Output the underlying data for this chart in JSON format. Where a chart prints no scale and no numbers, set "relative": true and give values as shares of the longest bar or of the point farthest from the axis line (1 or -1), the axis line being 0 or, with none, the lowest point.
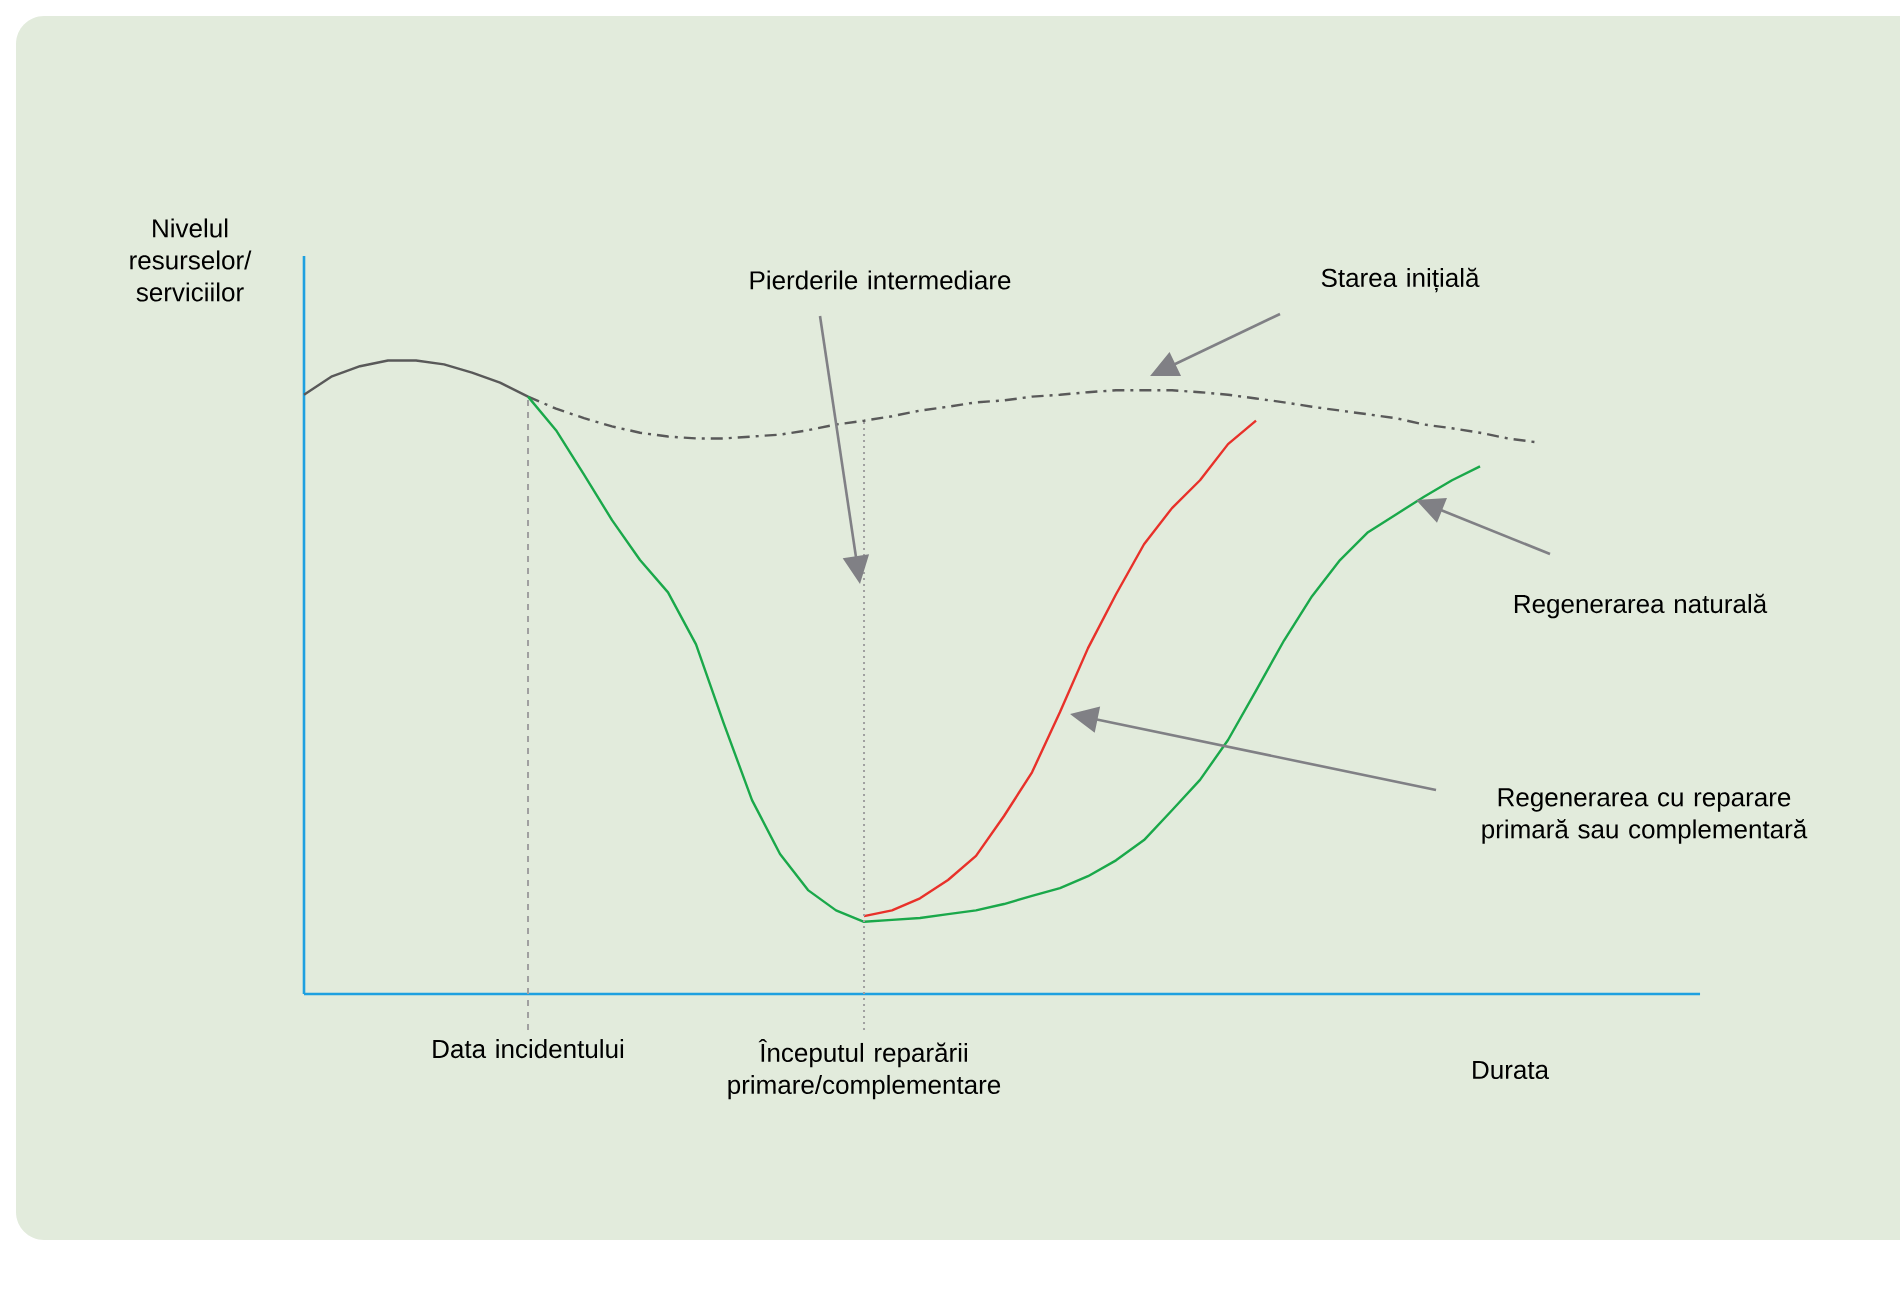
{
  "chart_data": {
    "type": "line",
    "relative": true,
    "ylabel": "Nivelul resurselor/ serviciilor",
    "xlabel": "Durata",
    "tick_labels": "x",
    "categories": [
      null,
      null,
      null,
      null,
      null,
      null,
      null,
      null,
      "Data incidentului",
      null,
      null,
      null,
      null,
      null,
      null,
      null,
      null,
      null,
      null,
      null,
      "Începutul reparării primare/complementare",
      null,
      null,
      null,
      null,
      null,
      null,
      null,
      null,
      null,
      null,
      null,
      null,
      null,
      null,
      null,
      null,
      null,
      null,
      null,
      null,
      null,
      null,
      null,
      null,
      null,
      null,
      null,
      null,
      null
    ],
    "series": [
      {
        "color": "#595959",
        "line_style": "solid",
        "values": [
          0.946,
          0.975,
          0.991,
          1.0,
          1.0,
          0.994,
          0.981,
          0.965,
          0.943,
          null,
          null,
          null,
          null,
          null,
          null,
          null,
          null,
          null,
          null,
          null,
          null,
          null,
          null,
          null,
          null,
          null,
          null,
          null,
          null,
          null,
          null,
          null,
          null,
          null,
          null,
          null,
          null,
          null,
          null,
          null,
          null,
          null,
          null,
          null,
          null,
          null,
          null,
          null,
          null,
          null
        ]
      },
      {
        "color": "#595959",
        "line_style": "dashed",
        "values": [
          null,
          null,
          null,
          null,
          null,
          null,
          null,
          null,
          0.943,
          0.924,
          0.909,
          0.896,
          0.886,
          0.88,
          0.877,
          0.877,
          0.88,
          0.883,
          0.89,
          0.899,
          0.905,
          0.912,
          0.921,
          0.927,
          0.934,
          0.937,
          0.943,
          0.946,
          0.95,
          0.953,
          0.953,
          0.953,
          0.95,
          0.946,
          0.94,
          0.934,
          0.927,
          0.921,
          0.915,
          0.909,
          0.899,
          0.893,
          0.886,
          0.877,
          0.871,
          null,
          null,
          null,
          null,
          null
        ]
      },
      {
        "color": "#1aa84a",
        "line_style": "solid",
        "values": [
          null,
          null,
          null,
          null,
          null,
          null,
          null,
          null,
          0.943,
          0.89,
          0.82,
          0.748,
          0.685,
          0.634,
          0.552,
          0.426,
          0.306,
          0.221,
          0.164,
          0.132,
          0.114,
          0.117,
          0.12,
          0.126,
          0.132,
          0.142,
          0.155,
          0.167,
          0.186,
          0.211,
          0.243,
          0.29,
          0.338,
          0.401,
          0.479,
          0.558,
          0.628,
          0.685,
          0.729,
          0.757,
          0.785,
          0.811,
          0.833,
          null,
          null,
          null,
          null,
          null,
          null,
          null
        ]
      },
      {
        "color": "#e8312a",
        "line_style": "solid",
        "values": [
          null,
          null,
          null,
          null,
          null,
          null,
          null,
          null,
          null,
          null,
          null,
          null,
          null,
          null,
          null,
          null,
          null,
          null,
          null,
          null,
          0.123,
          0.132,
          0.151,
          0.18,
          0.218,
          0.281,
          0.35,
          0.445,
          0.546,
          0.631,
          0.71,
          0.767,
          0.811,
          0.868,
          0.905,
          null,
          null,
          null,
          null,
          null,
          null,
          null,
          null,
          null,
          null,
          null,
          null,
          null,
          null,
          null
        ]
      }
    ],
    "ref_lines": [
      {
        "axis": "x",
        "value": "Data incidentului",
        "color": "#a0a0a0",
        "line_style": "dashed"
      },
      {
        "axis": "x",
        "value": "Începutul reparării primare/complementare",
        "color": "#a0a0a0",
        "line_style": "dotted"
      }
    ],
    "annotations": [
      "Pierderile intermediare",
      "Starea inițială",
      "Regenerarea naturală",
      "Regenerarea cu reparare primară sau complementară"
    ]
  }
}
